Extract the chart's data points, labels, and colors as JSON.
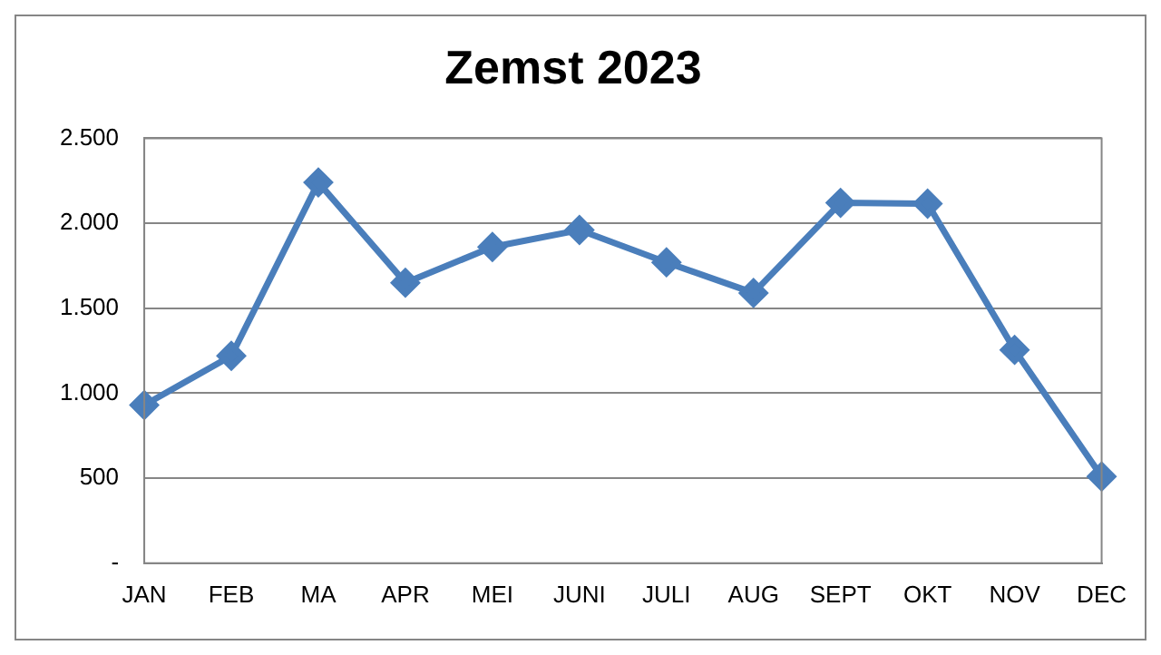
{
  "chart_data": {
    "type": "line",
    "title": "Zemst 2023",
    "categories": [
      "JAN",
      "FEB",
      "MA",
      "APR",
      "MEI",
      "JUNI",
      "JULI",
      "AUG",
      "SEPT",
      "OKT",
      "NOV",
      "DEC"
    ],
    "series": [
      {
        "color": "#4a7ebb",
        "values": [
          930,
          1220,
          2240,
          1650,
          1860,
          1960,
          1770,
          1590,
          2120,
          2115,
          1255,
          510
        ]
      }
    ],
    "ylim": [
      0,
      2500
    ],
    "yticks": [
      {
        "value": 0,
        "label": "-"
      },
      {
        "value": 500,
        "label": "500"
      },
      {
        "value": 1000,
        "label": "1.000"
      },
      {
        "value": 1500,
        "label": "1.500"
      },
      {
        "value": 2000,
        "label": "2.000"
      },
      {
        "value": 2500,
        "label": "2.500"
      }
    ],
    "grid": "y",
    "legend": false,
    "marker": "diamond",
    "line_style": "solid"
  }
}
